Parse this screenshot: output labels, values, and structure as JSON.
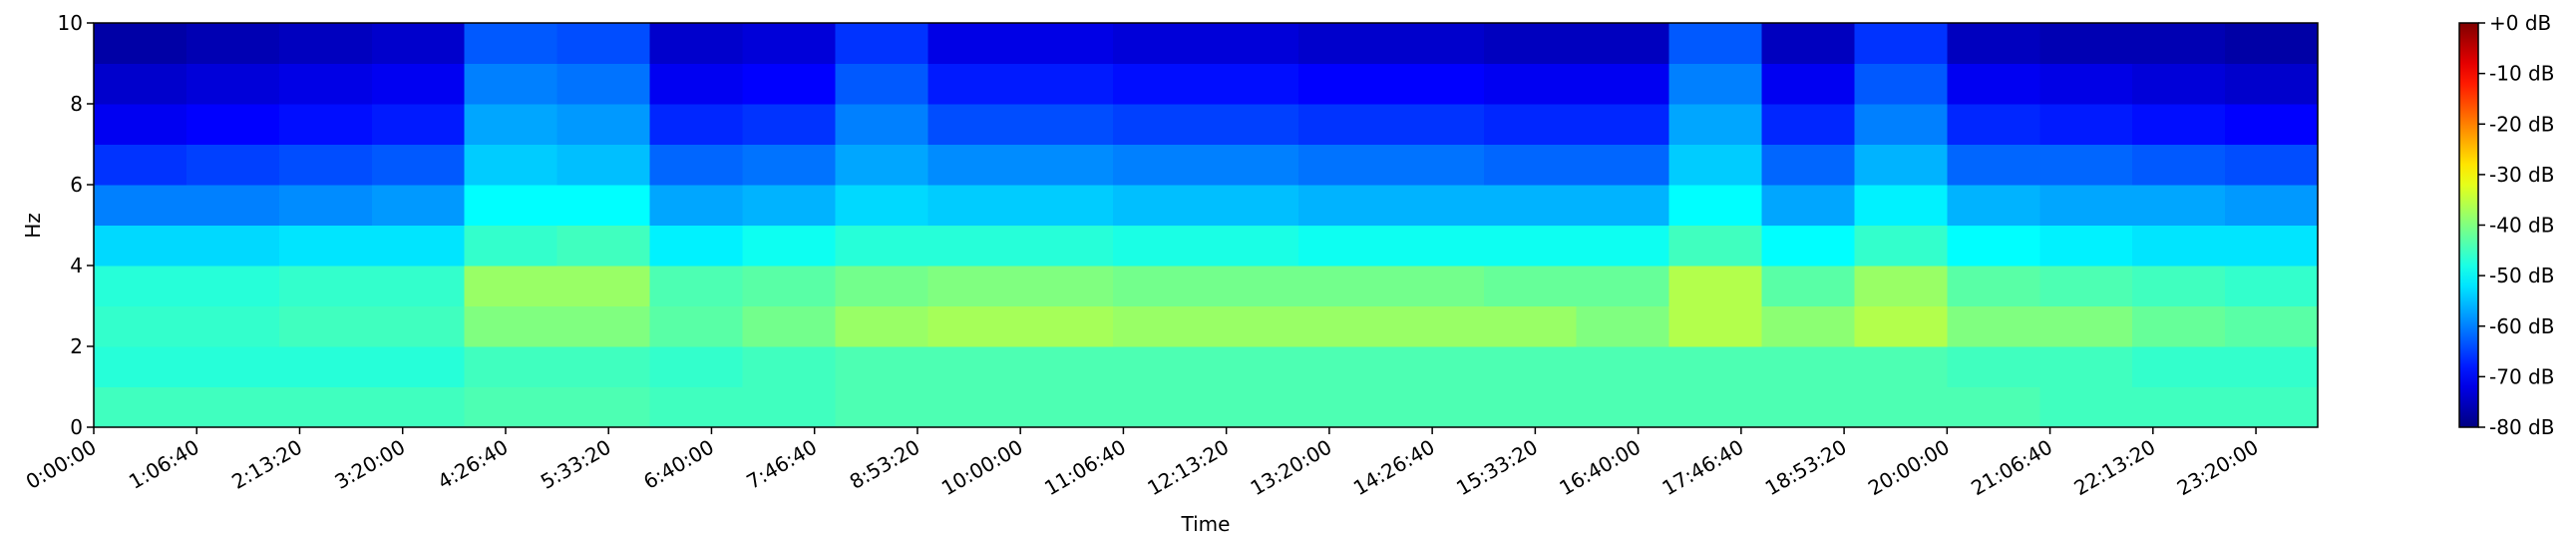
{
  "chart_data": {
    "type": "heatmap",
    "colormap": "jet",
    "xlabel": "Time",
    "ylabel": "Hz",
    "x_bins": [
      0,
      3600,
      7200,
      10800,
      14400,
      18000,
      21600,
      25200,
      28800,
      32400,
      36000,
      39600,
      43200,
      46800,
      50400,
      54000,
      57600,
      61200,
      64800,
      68400,
      72000,
      75600,
      79200,
      82800,
      86400
    ],
    "y_bins": [
      0,
      1,
      2,
      3,
      4,
      5,
      6,
      7,
      8,
      9,
      10
    ],
    "values": [
      [
        -45,
        -45,
        -45,
        -45,
        -44,
        -44,
        -45,
        -45,
        -44,
        -44,
        -44,
        -44,
        -44,
        -44,
        -44,
        -44,
        -44,
        -44,
        -44,
        -44,
        -44,
        -45,
        -45,
        -45
      ],
      [
        -47,
        -47,
        -47,
        -47,
        -45,
        -45,
        -46,
        -45,
        -44,
        -44,
        -44,
        -44,
        -44,
        -44,
        -44,
        -44,
        -44,
        -44,
        -44,
        -44,
        -45,
        -45,
        -46,
        -46
      ],
      [
        -46,
        -46,
        -45,
        -45,
        -40,
        -40,
        -43,
        -41,
        -38,
        -37,
        -37,
        -38,
        -38,
        -38,
        -38,
        -38,
        -40,
        -36,
        -39,
        -36,
        -40,
        -40,
        -42,
        -43
      ],
      [
        -47,
        -47,
        -46,
        -46,
        -38,
        -38,
        -44,
        -43,
        -41,
        -40,
        -40,
        -41,
        -41,
        -41,
        -41,
        -42,
        -42,
        -36,
        -43,
        -38,
        -43,
        -44,
        -45,
        -46
      ],
      [
        -53,
        -53,
        -52,
        -52,
        -46,
        -45,
        -51,
        -49,
        -47,
        -47,
        -47,
        -48,
        -48,
        -49,
        -49,
        -49,
        -49,
        -45,
        -50,
        -46,
        -50,
        -51,
        -52,
        -52
      ],
      [
        -60,
        -60,
        -59,
        -58,
        -50,
        -50,
        -57,
        -56,
        -53,
        -54,
        -54,
        -55,
        -55,
        -56,
        -56,
        -56,
        -56,
        -50,
        -57,
        -51,
        -56,
        -57,
        -57,
        -58
      ],
      [
        -66,
        -65,
        -64,
        -63,
        -54,
        -55,
        -62,
        -61,
        -57,
        -59,
        -59,
        -60,
        -60,
        -61,
        -61,
        -62,
        -62,
        -54,
        -62,
        -56,
        -62,
        -62,
        -63,
        -64
      ],
      [
        -71,
        -70,
        -69,
        -68,
        -57,
        -58,
        -67,
        -66,
        -60,
        -64,
        -64,
        -65,
        -65,
        -66,
        -66,
        -67,
        -67,
        -57,
        -67,
        -60,
        -67,
        -68,
        -69,
        -70
      ],
      [
        -74,
        -73,
        -72,
        -71,
        -60,
        -61,
        -71,
        -70,
        -63,
        -68,
        -68,
        -69,
        -69,
        -70,
        -70,
        -71,
        -71,
        -60,
        -71,
        -63,
        -71,
        -72,
        -73,
        -74
      ],
      [
        -77,
        -76,
        -75,
        -74,
        -63,
        -64,
        -74,
        -73,
        -66,
        -72,
        -72,
        -73,
        -73,
        -74,
        -74,
        -75,
        -75,
        -63,
        -75,
        -66,
        -75,
        -76,
        -76,
        -77
      ]
    ],
    "xlim": [
      0,
      86400
    ],
    "ylim": [
      0,
      10
    ],
    "clim": [
      -80,
      0
    ],
    "xticks": [
      {
        "value": 0,
        "label": "0:00:00"
      },
      {
        "value": 4000,
        "label": "1:06:40"
      },
      {
        "value": 8000,
        "label": "2:13:20"
      },
      {
        "value": 12000,
        "label": "3:20:00"
      },
      {
        "value": 16000,
        "label": "4:26:40"
      },
      {
        "value": 20000,
        "label": "5:33:20"
      },
      {
        "value": 24000,
        "label": "6:40:00"
      },
      {
        "value": 28000,
        "label": "7:46:40"
      },
      {
        "value": 32000,
        "label": "8:53:20"
      },
      {
        "value": 36000,
        "label": "10:00:00"
      },
      {
        "value": 40000,
        "label": "11:06:40"
      },
      {
        "value": 44000,
        "label": "12:13:20"
      },
      {
        "value": 48000,
        "label": "13:20:00"
      },
      {
        "value": 52000,
        "label": "14:26:40"
      },
      {
        "value": 56000,
        "label": "15:33:20"
      },
      {
        "value": 60000,
        "label": "16:40:00"
      },
      {
        "value": 64000,
        "label": "17:46:40"
      },
      {
        "value": 68000,
        "label": "18:53:20"
      },
      {
        "value": 72000,
        "label": "20:00:00"
      },
      {
        "value": 76000,
        "label": "21:06:40"
      },
      {
        "value": 80000,
        "label": "22:13:20"
      },
      {
        "value": 84000,
        "label": "23:20:00"
      }
    ],
    "yticks": [
      0,
      2,
      4,
      6,
      8,
      10
    ],
    "cticks": [
      {
        "value": 0,
        "label": "+0 dB"
      },
      {
        "value": -10,
        "label": "-10 dB"
      },
      {
        "value": -20,
        "label": "-20 dB"
      },
      {
        "value": -30,
        "label": "-30 dB"
      },
      {
        "value": -40,
        "label": "-40 dB"
      },
      {
        "value": -50,
        "label": "-50 dB"
      },
      {
        "value": -60,
        "label": "-60 dB"
      },
      {
        "value": -70,
        "label": "-70 dB"
      },
      {
        "value": -80,
        "label": "-80 dB"
      }
    ]
  }
}
